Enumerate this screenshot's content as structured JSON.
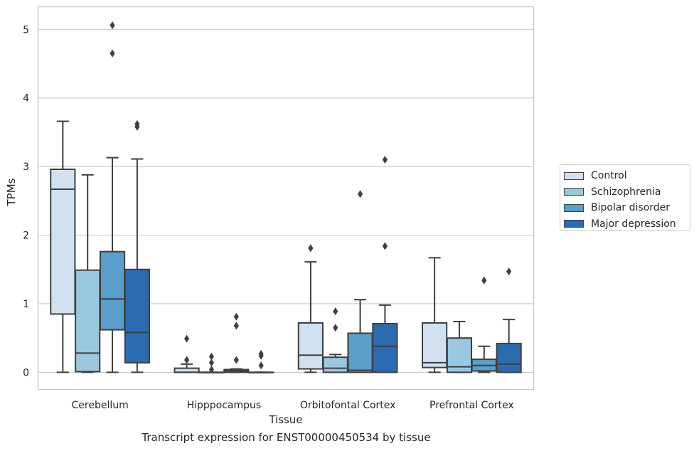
{
  "caption": "Transcript expression for ENST00000450534 by tissue",
  "chart_data": {
    "type": "box",
    "xlabel": "Tissue",
    "ylabel": "TPMs",
    "ylim": [
      -0.25,
      5.33
    ],
    "yticks": [
      0,
      1,
      2,
      3,
      4,
      5
    ],
    "grid": "horizontal",
    "legend_position": "right",
    "categories": [
      "Cerebellum",
      "Hipppocampus",
      "Orbitofontal Cortex",
      "Prefrontal Cortex"
    ],
    "series": [
      {
        "name": "Control",
        "color": "#d2e1f1",
        "boxes": [
          {
            "q1": 0.85,
            "median": 2.67,
            "q3": 2.96,
            "whisker_low": 0,
            "whisker_high": 3.66,
            "outliers": []
          },
          {
            "q1": 0,
            "median": 0,
            "q3": 0.06,
            "whisker_low": 0,
            "whisker_high": 0.12,
            "outliers": [
              0.18,
              0.49
            ]
          },
          {
            "q1": 0.05,
            "median": 0.25,
            "q3": 0.72,
            "whisker_low": 0,
            "whisker_high": 1.61,
            "outliers": [
              1.81
            ]
          },
          {
            "q1": 0.07,
            "median": 0.14,
            "q3": 0.72,
            "whisker_low": 0,
            "whisker_high": 1.67,
            "outliers": []
          }
        ]
      },
      {
        "name": "Schizophrenia",
        "color": "#9ac8e0",
        "boxes": [
          {
            "q1": 0.01,
            "median": 0.28,
            "q3": 1.49,
            "whisker_low": 0,
            "whisker_high": 2.88,
            "outliers": []
          },
          {
            "q1": 0,
            "median": 0,
            "q3": 0,
            "whisker_low": 0,
            "whisker_high": 0,
            "outliers": [
              0.04,
              0.14,
              0.23
            ]
          },
          {
            "q1": 0,
            "median": 0.06,
            "q3": 0.22,
            "whisker_low": 0,
            "whisker_high": 0.26,
            "outliers": [
              0.65,
              0.89
            ]
          },
          {
            "q1": 0,
            "median": 0.08,
            "q3": 0.5,
            "whisker_low": 0,
            "whisker_high": 0.74,
            "outliers": []
          }
        ]
      },
      {
        "name": "Bipolar disorder",
        "color": "#5a9ecb",
        "boxes": [
          {
            "q1": 0.62,
            "median": 1.07,
            "q3": 1.76,
            "whisker_low": 0,
            "whisker_high": 3.13,
            "outliers": [
              4.65,
              5.06
            ]
          },
          {
            "q1": 0,
            "median": 0.02,
            "q3": 0.04,
            "whisker_low": 0,
            "whisker_high": 0.05,
            "outliers": [
              0.18,
              0.68,
              0.81
            ]
          },
          {
            "q1": 0,
            "median": 0.03,
            "q3": 0.57,
            "whisker_low": 0,
            "whisker_high": 1.06,
            "outliers": [
              2.6
            ]
          },
          {
            "q1": 0.02,
            "median": 0.1,
            "q3": 0.19,
            "whisker_low": 0,
            "whisker_high": 0.38,
            "outliers": [
              1.34
            ]
          }
        ]
      },
      {
        "name": "Major depression",
        "color": "#2b6cb0",
        "boxes": [
          {
            "q1": 0.14,
            "median": 0.58,
            "q3": 1.5,
            "whisker_low": 0,
            "whisker_high": 3.11,
            "outliers": [
              3.58,
              3.62
            ]
          },
          {
            "q1": 0,
            "median": 0,
            "q3": 0,
            "whisker_low": 0,
            "whisker_high": 0,
            "outliers": [
              0.1,
              0.24,
              0.27
            ]
          },
          {
            "q1": 0,
            "median": 0.38,
            "q3": 0.71,
            "whisker_low": 0,
            "whisker_high": 0.98,
            "outliers": [
              1.84,
              3.1
            ]
          },
          {
            "q1": 0,
            "median": 0.12,
            "q3": 0.42,
            "whisker_low": 0,
            "whisker_high": 0.77,
            "outliers": [
              1.47
            ]
          }
        ]
      }
    ]
  }
}
